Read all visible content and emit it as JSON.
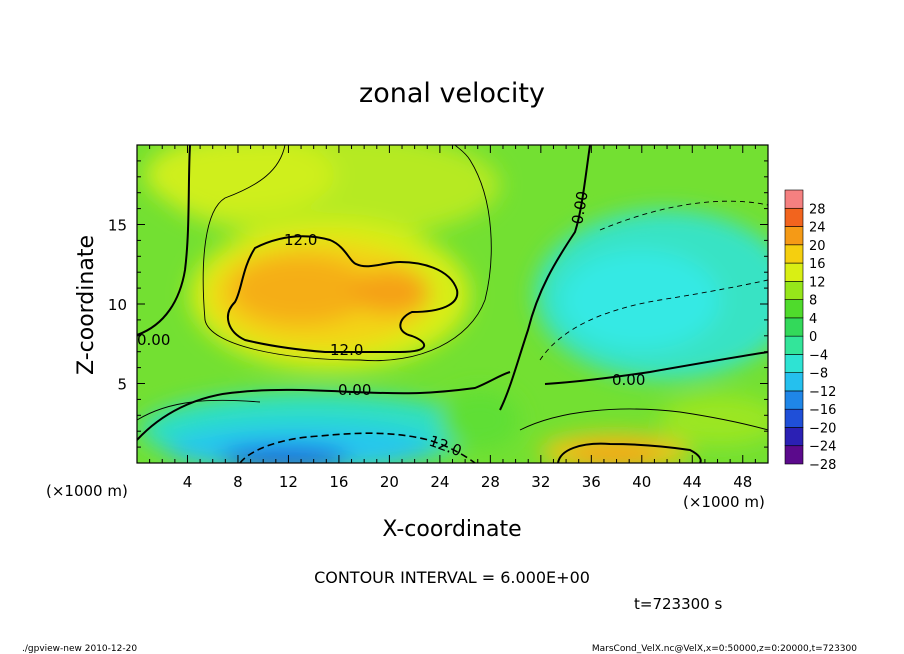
{
  "chart_data": {
    "type": "heatmap",
    "title": "zonal velocity",
    "xlabel": "X-coordinate",
    "ylabel": "Z-coordinate",
    "x_unit_left": "(×1000 m)",
    "x_unit_right": "(×1000 m)",
    "xlim": [
      0,
      50
    ],
    "ylim": [
      0,
      20
    ],
    "x_ticks": [
      4,
      8,
      12,
      16,
      20,
      24,
      28,
      32,
      36,
      40,
      44,
      48
    ],
    "y_ticks": [
      5,
      10,
      15
    ],
    "colorbar": {
      "levels": [
        -28,
        -24,
        -20,
        -16,
        -12,
        -8,
        -4,
        0,
        4,
        8,
        12,
        16,
        20,
        24,
        28
      ],
      "labels": [
        "28",
        "24",
        "20",
        "16",
        "12",
        "8",
        "4",
        "0",
        "−4",
        "−8",
        "−12",
        "−16",
        "−20",
        "−24",
        "−28"
      ],
      "colors": [
        "#5b0a8c",
        "#2b20b4",
        "#1f4fd8",
        "#1f86e8",
        "#25c0ee",
        "#2ee3d3",
        "#33e59a",
        "#33d95a",
        "#4fdb2c",
        "#96e61a",
        "#d9ef14",
        "#f5cf0f",
        "#f59a16",
        "#f2641e",
        "#f58080"
      ]
    },
    "contour_labels": [
      "12.0",
      "12.0",
      "0.00",
      "0.00",
      "0.00",
      "0.00",
      "12.0"
    ],
    "contour_interval_text": "CONTOUR INTERVAL = 6.000E+00",
    "time_text": "t=723300 s"
  },
  "footer": {
    "left": "./gpview-new  2010-12-20",
    "right": "MarsCond_VelX.nc@VelX,x=0:50000,z=0:20000,t=723300"
  }
}
